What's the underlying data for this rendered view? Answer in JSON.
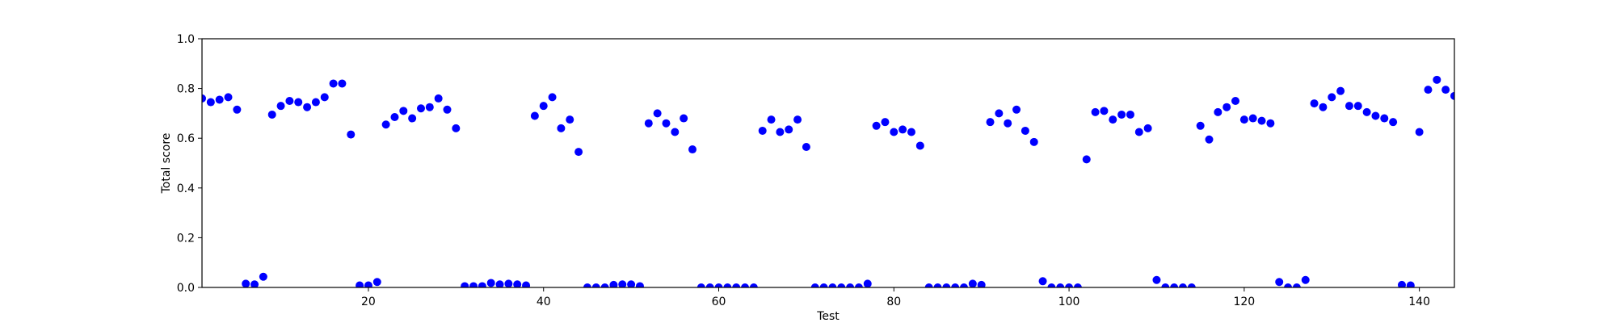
{
  "chart_data": {
    "type": "scatter",
    "title": "",
    "xlabel": "Test",
    "ylabel": "Total score",
    "xlim": [
      1,
      144
    ],
    "ylim": [
      0.0,
      1.0
    ],
    "xticks": [
      20,
      40,
      60,
      80,
      100,
      120,
      140
    ],
    "yticks": [
      0.0,
      0.2,
      0.4,
      0.6,
      0.8,
      1.0
    ],
    "ytick_labels": [
      "0.0",
      "0.2",
      "0.4",
      "0.6",
      "0.8",
      "1.0"
    ],
    "grid": false,
    "marker_color": "#0000ff",
    "series": [
      {
        "x": [
          1,
          2,
          3,
          4,
          5,
          6,
          7,
          8,
          9,
          10,
          11,
          12,
          13,
          14,
          15,
          16,
          17,
          18,
          19,
          20,
          21,
          22,
          23,
          24,
          25,
          26,
          27,
          28,
          29,
          30,
          31,
          32,
          33,
          34,
          35,
          36,
          37,
          38,
          39,
          40,
          41,
          42,
          43,
          44,
          45,
          46,
          47,
          48,
          49,
          50,
          51,
          52,
          53,
          54,
          55,
          56,
          57,
          58,
          59,
          60,
          61,
          62,
          63,
          64,
          65,
          66,
          67,
          68,
          69,
          70,
          71,
          72,
          73,
          74,
          75,
          76,
          77,
          78,
          79,
          80,
          81,
          82,
          83,
          84,
          85,
          86,
          87,
          88,
          89,
          90,
          91,
          92,
          93,
          94,
          95,
          96,
          97,
          98,
          99,
          100,
          101,
          102,
          103,
          104,
          105,
          106,
          107,
          108,
          109,
          110,
          111,
          112,
          113,
          114,
          115,
          116,
          117,
          118,
          119,
          120,
          121,
          122,
          123,
          124,
          125,
          126,
          127,
          128,
          129,
          130,
          131,
          132,
          133,
          134,
          135,
          136,
          137,
          138,
          139,
          140,
          141,
          142,
          143,
          144
        ],
        "y": [
          0.76,
          0.745,
          0.755,
          0.765,
          0.715,
          0.015,
          0.012,
          0.043,
          0.695,
          0.73,
          0.75,
          0.745,
          0.725,
          0.745,
          0.765,
          0.82,
          0.82,
          0.615,
          0.008,
          0.008,
          0.022,
          0.655,
          0.685,
          0.71,
          0.68,
          0.72,
          0.725,
          0.76,
          0.715,
          0.64,
          0.005,
          0.005,
          0.005,
          0.018,
          0.012,
          0.015,
          0.012,
          0.008,
          0.69,
          0.73,
          0.765,
          0.64,
          0.675,
          0.545,
          0.0,
          0.0,
          0.0,
          0.01,
          0.012,
          0.012,
          0.005,
          0.66,
          0.7,
          0.66,
          0.625,
          0.68,
          0.555,
          0.0,
          0.0,
          0.0,
          0.0,
          0.0,
          0.0,
          0.0,
          0.63,
          0.675,
          0.625,
          0.635,
          0.675,
          0.565,
          0.0,
          0.0,
          0.0,
          0.0,
          0.0,
          0.0,
          0.015,
          0.65,
          0.665,
          0.625,
          0.635,
          0.625,
          0.57,
          0.0,
          0.0,
          0.0,
          0.0,
          0.0,
          0.015,
          0.01,
          0.665,
          0.7,
          0.66,
          0.715,
          0.63,
          0.585,
          0.025,
          0.0,
          0.0,
          0.0,
          0.0,
          0.515,
          0.705,
          0.71,
          0.675,
          0.695,
          0.695,
          0.625,
          0.64,
          0.03,
          0.0,
          0.0,
          0.0,
          0.0,
          0.65,
          0.595,
          0.705,
          0.725,
          0.75,
          0.675,
          0.68,
          0.67,
          0.66,
          0.022,
          0.0,
          0.0,
          0.03,
          0.74,
          0.725,
          0.765,
          0.79,
          0.73,
          0.73,
          0.705,
          0.69,
          0.68,
          0.665,
          0.01,
          0.008,
          0.625,
          0.795,
          0.835,
          0.795,
          0.77
        ]
      }
    ]
  }
}
